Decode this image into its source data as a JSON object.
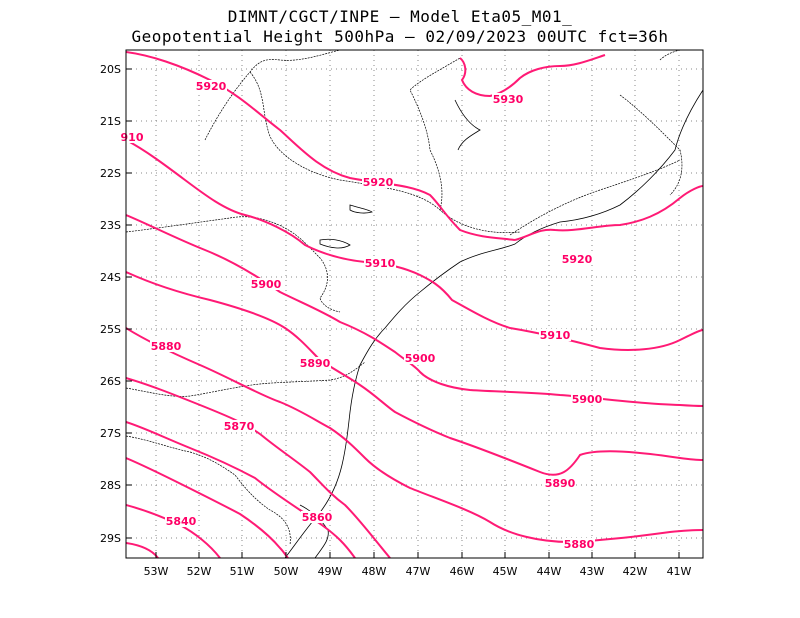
{
  "header": {
    "line1": "DIMNT/CGCT/INPE —  Model Eta05_M01_",
    "line2": "Geopotential Height 500hPa —  02/09/2023 00UTC fct=36h"
  },
  "axes": {
    "lat_labels": [
      "20S",
      "21S",
      "22S",
      "23S",
      "24S",
      "25S",
      "26S",
      "27S",
      "28S",
      "29S"
    ],
    "lon_labels": [
      "53W",
      "52W",
      "51W",
      "50W",
      "49W",
      "48W",
      "47W",
      "46W",
      "45W",
      "44W",
      "43W",
      "42W",
      "41W"
    ]
  },
  "contour_labels": [
    "5920",
    "5930",
    "910",
    "5920",
    "5920",
    "5910",
    "5900",
    "5910",
    "5880",
    "5890",
    "5900",
    "5900",
    "5870",
    "5890",
    "5860",
    "5840",
    "5880"
  ],
  "colors": {
    "contour": "#ff1a75",
    "coast": "#000000"
  }
}
